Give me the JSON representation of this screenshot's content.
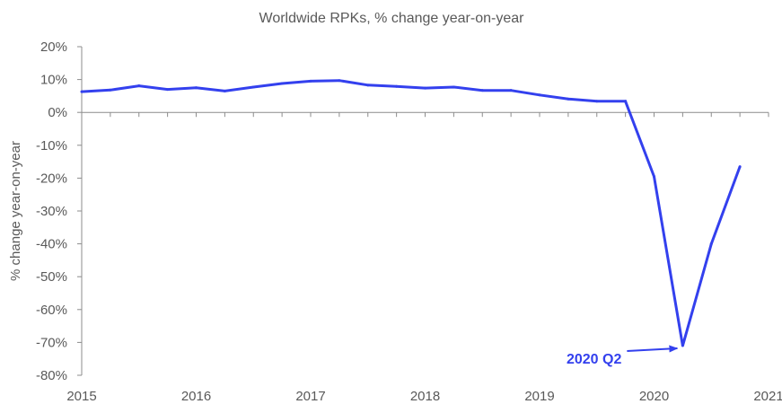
{
  "chart_data": {
    "type": "line",
    "title": "Worldwide RPKs, % change year-on-year",
    "xlabel": "",
    "ylabel": "% change year-on-year",
    "ylim": [
      -80,
      20
    ],
    "yticks": [
      20,
      10,
      0,
      -10,
      -20,
      -30,
      -40,
      -50,
      -60,
      -70,
      -80
    ],
    "ytick_labels": [
      "20%",
      "10%",
      "0%",
      "-10%",
      "-20%",
      "-30%",
      "-40%",
      "-50%",
      "-60%",
      "-70%",
      "-80%"
    ],
    "xlim": [
      2015,
      2021
    ],
    "xticks": [
      2015,
      2016,
      2017,
      2018,
      2019,
      2020,
      2021
    ],
    "xtick_labels": [
      "2015",
      "2016",
      "2017",
      "2018",
      "2019",
      "2020",
      "2021"
    ],
    "grid": false,
    "line_color": "#3340ee",
    "series": [
      {
        "x": [
          2015.0,
          2015.25,
          2015.5,
          2015.75,
          2016.0,
          2016.25,
          2016.5,
          2016.75,
          2017.0,
          2017.25,
          2017.5,
          2017.75,
          2018.0,
          2018.25,
          2018.5,
          2018.75,
          2019.0,
          2019.25,
          2019.5,
          2019.75,
          2020.0,
          2020.25,
          2020.5,
          2020.75
        ],
        "values": [
          6.3,
          6.8,
          8.1,
          7.0,
          7.5,
          6.5,
          7.7,
          8.8,
          9.5,
          9.7,
          8.3,
          7.9,
          7.4,
          7.7,
          6.7,
          6.7,
          5.3,
          4.1,
          3.4,
          3.4,
          -19.5,
          -71.0,
          -40.0,
          -16.5
        ]
      }
    ],
    "annotations": [
      {
        "text": "2020 Q2",
        "x": 2020.25,
        "y": -71.0,
        "color": "#3340ee"
      }
    ]
  }
}
